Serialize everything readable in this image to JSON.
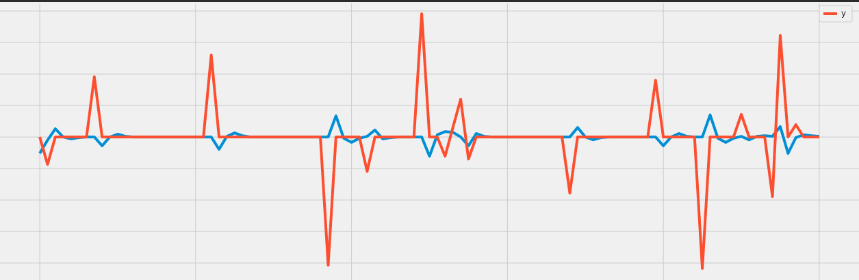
{
  "chart_data": {
    "type": "line",
    "x": [
      0,
      1,
      2,
      3,
      4,
      5,
      6,
      7,
      8,
      9,
      10,
      11,
      12,
      13,
      14,
      15,
      16,
      17,
      18,
      19,
      20,
      21,
      22,
      23,
      24,
      25,
      26,
      27,
      28,
      29,
      30,
      31,
      32,
      33,
      34,
      35,
      36,
      37,
      38,
      39,
      40,
      41,
      42,
      43,
      44,
      45,
      46,
      47,
      48,
      49,
      50,
      51,
      52,
      53,
      54,
      55,
      56,
      57,
      58,
      59,
      60,
      61,
      62,
      63,
      64,
      65,
      66,
      67,
      68,
      69,
      70,
      71,
      72,
      73,
      74,
      75,
      76,
      77,
      78,
      79,
      80,
      81,
      82,
      83,
      84,
      85,
      86,
      87,
      88,
      89,
      90,
      91,
      92,
      93,
      94,
      95,
      96,
      97,
      98,
      99,
      100
    ],
    "series": [
      {
        "color": "#008fd5",
        "values": [
          -0.52,
          -0.1,
          0.26,
          0,
          -0.06,
          -0.02,
          0,
          0,
          -0.28,
          0,
          0.09,
          0.02,
          0,
          0,
          0,
          0,
          0,
          0,
          0,
          0,
          0,
          0,
          0,
          -0.39,
          0.02,
          0.13,
          0.04,
          0,
          0,
          0,
          0,
          0,
          0,
          0,
          0,
          0,
          0,
          0,
          0.67,
          -0.04,
          -0.17,
          -0.04,
          0.02,
          0.22,
          -0.06,
          -0.02,
          0,
          0,
          0,
          0,
          -0.61,
          0.07,
          0.17,
          0.15,
          0,
          -0.28,
          0.11,
          0.02,
          0,
          0,
          0,
          0,
          0,
          0,
          0,
          0,
          0,
          0,
          0,
          0.3,
          0,
          -0.09,
          -0.02,
          0,
          0,
          0,
          0,
          0,
          0,
          0,
          -0.28,
          0,
          0.11,
          0.02,
          0,
          0,
          0.7,
          -0.04,
          -0.17,
          -0.04,
          0.02,
          -0.09,
          0.02,
          0.04,
          0.02,
          0.33,
          -0.52,
          -0.02,
          0.07,
          0.04,
          0.02
        ]
      },
      {
        "name": "y",
        "color": "#fc4f30",
        "values": [
          0,
          -0.87,
          0,
          0,
          0,
          0,
          0,
          1.91,
          0,
          0,
          0,
          0,
          0,
          0,
          0,
          0,
          0,
          0,
          0,
          0,
          0,
          0,
          2.6,
          0,
          0,
          0,
          0,
          0,
          0,
          0,
          0,
          0,
          0,
          0,
          0,
          0,
          0,
          -4.07,
          0,
          0,
          0,
          0,
          -1.09,
          0,
          0,
          0,
          0,
          0,
          0,
          3.91,
          0,
          0,
          -0.61,
          0.3,
          1.2,
          -0.7,
          0,
          0,
          0,
          0,
          0,
          0,
          0,
          0,
          0,
          0,
          0,
          0,
          -1.78,
          0,
          0,
          0,
          0,
          0,
          0,
          0,
          0,
          0,
          0,
          1.8,
          0,
          0,
          0,
          0,
          0,
          -4.17,
          0,
          0,
          0,
          0,
          0.72,
          0,
          0,
          0,
          -1.89,
          3.22,
          0,
          0.39,
          0,
          0,
          0
        ]
      }
    ],
    "xlim": [
      -5.1,
      105.1
    ],
    "xticks": [
      0,
      20,
      40,
      60,
      80,
      100
    ],
    "ylim": [
      -4.54,
      4.24
    ],
    "yticks": [
      -4,
      -3,
      -2,
      -1,
      0,
      1,
      2,
      3,
      4
    ],
    "grid": true,
    "legend": "upper right"
  }
}
